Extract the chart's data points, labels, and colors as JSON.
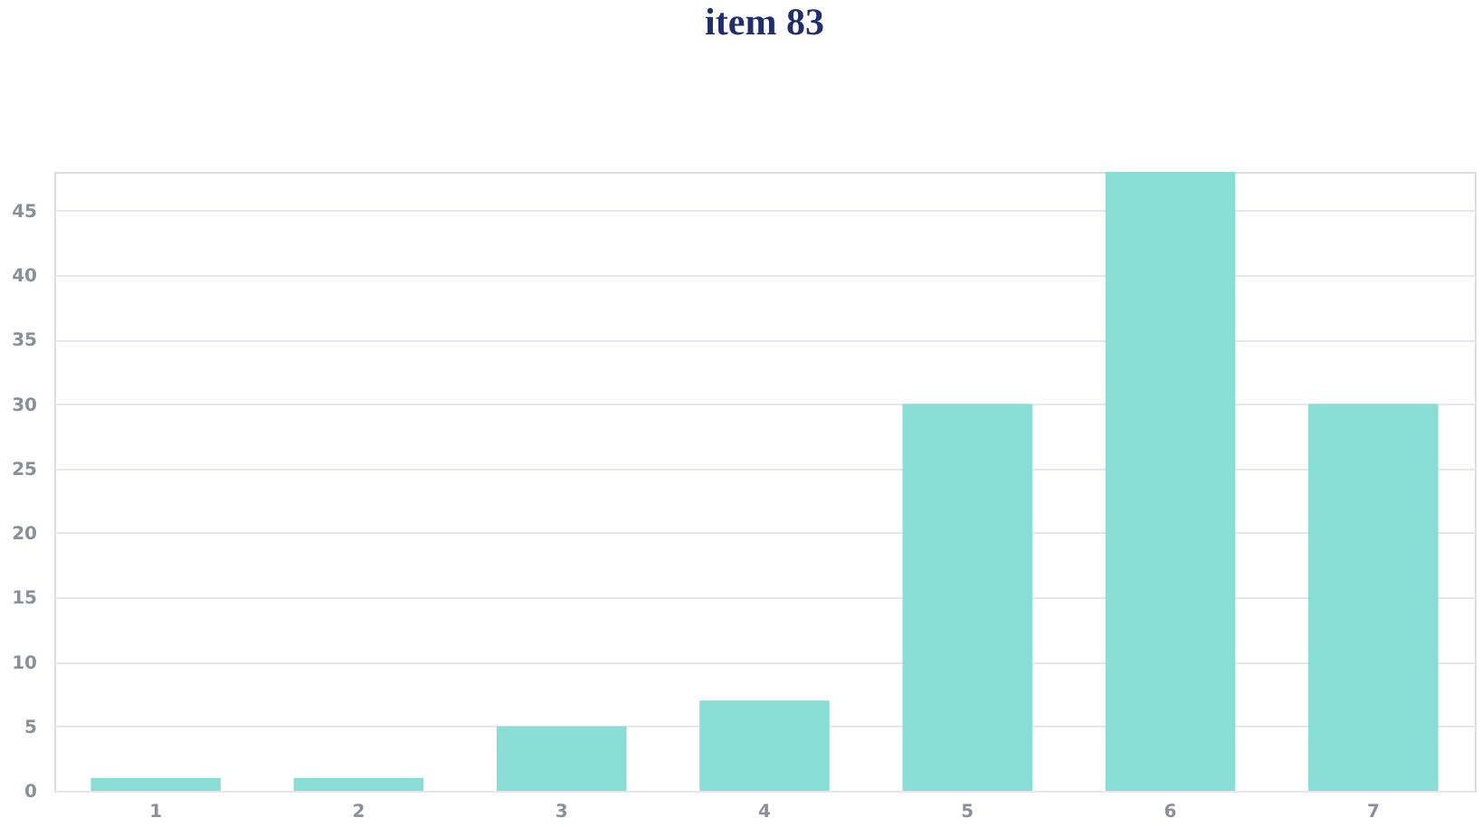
{
  "chart_data": {
    "type": "bar",
    "title": "item 83",
    "categories": [
      "1",
      "2",
      "3",
      "4",
      "5",
      "6",
      "7"
    ],
    "values": [
      1,
      1,
      5,
      7,
      30,
      48,
      30
    ],
    "color": "#88ddd5",
    "ylim": [
      0,
      48
    ],
    "yticks": [
      0,
      5,
      10,
      15,
      20,
      25,
      30,
      35,
      40,
      45
    ],
    "grid": "y"
  }
}
